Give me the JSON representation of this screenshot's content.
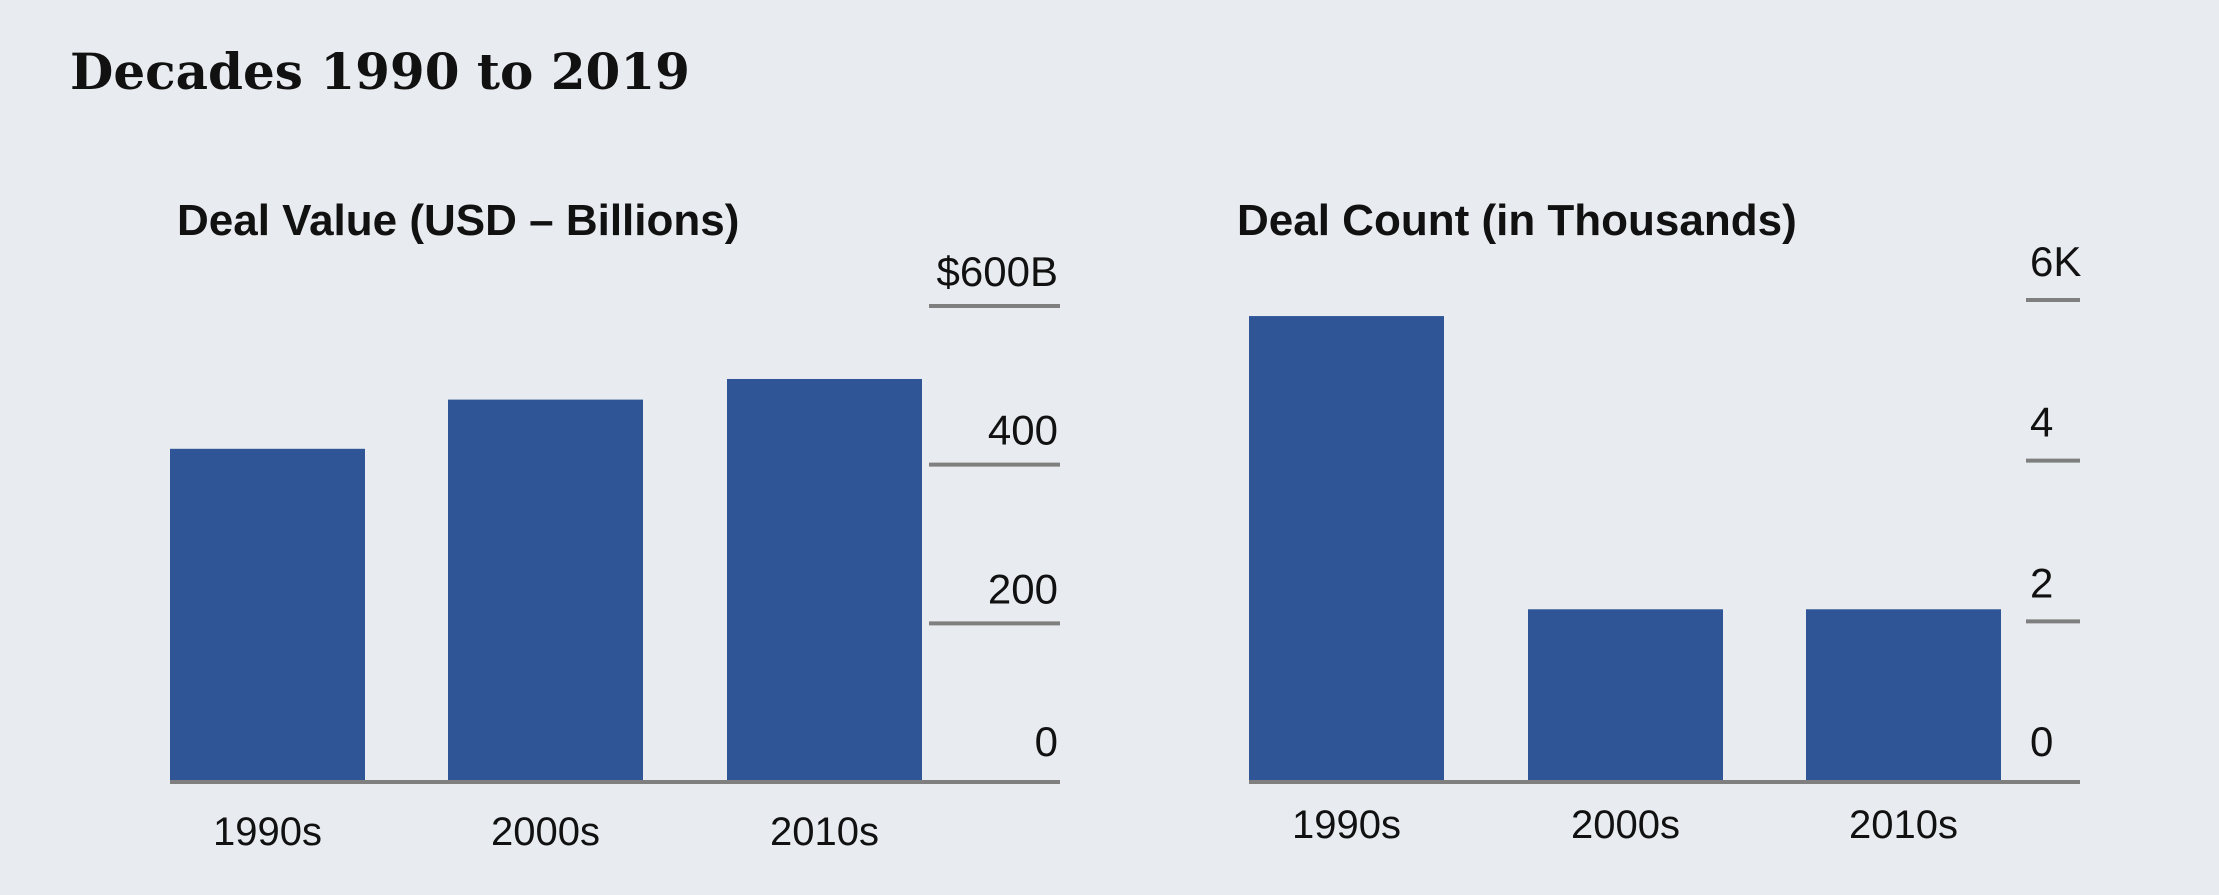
{
  "page": {
    "title": "Decades 1990 to 2019"
  },
  "colors": {
    "background": "#e8ebf0",
    "bar": "#2f5597",
    "axis": "#7f7f7f",
    "text": "#111111"
  },
  "chart_data": [
    {
      "type": "bar",
      "title": "Deal Value (USD – Billions)",
      "categories": [
        "1990s",
        "2000s",
        "2010s"
      ],
      "values": [
        420,
        482,
        508
      ],
      "ylim": [
        0,
        600
      ],
      "yticks": [
        0,
        200,
        400,
        600
      ],
      "ytick_labels": [
        "0",
        "200",
        "400",
        "$600B"
      ],
      "axis_position": "right",
      "grid": false
    },
    {
      "type": "bar",
      "title": "Deal Count (in Thousands)",
      "categories": [
        "1990s",
        "2000s",
        "2010s"
      ],
      "values": [
        5.8,
        2.15,
        2.15
      ],
      "ylim": [
        0,
        6
      ],
      "yticks": [
        0,
        2,
        4,
        6
      ],
      "ytick_labels": [
        "0",
        "2",
        "4",
        "6K"
      ],
      "axis_position": "right",
      "grid": false
    }
  ]
}
